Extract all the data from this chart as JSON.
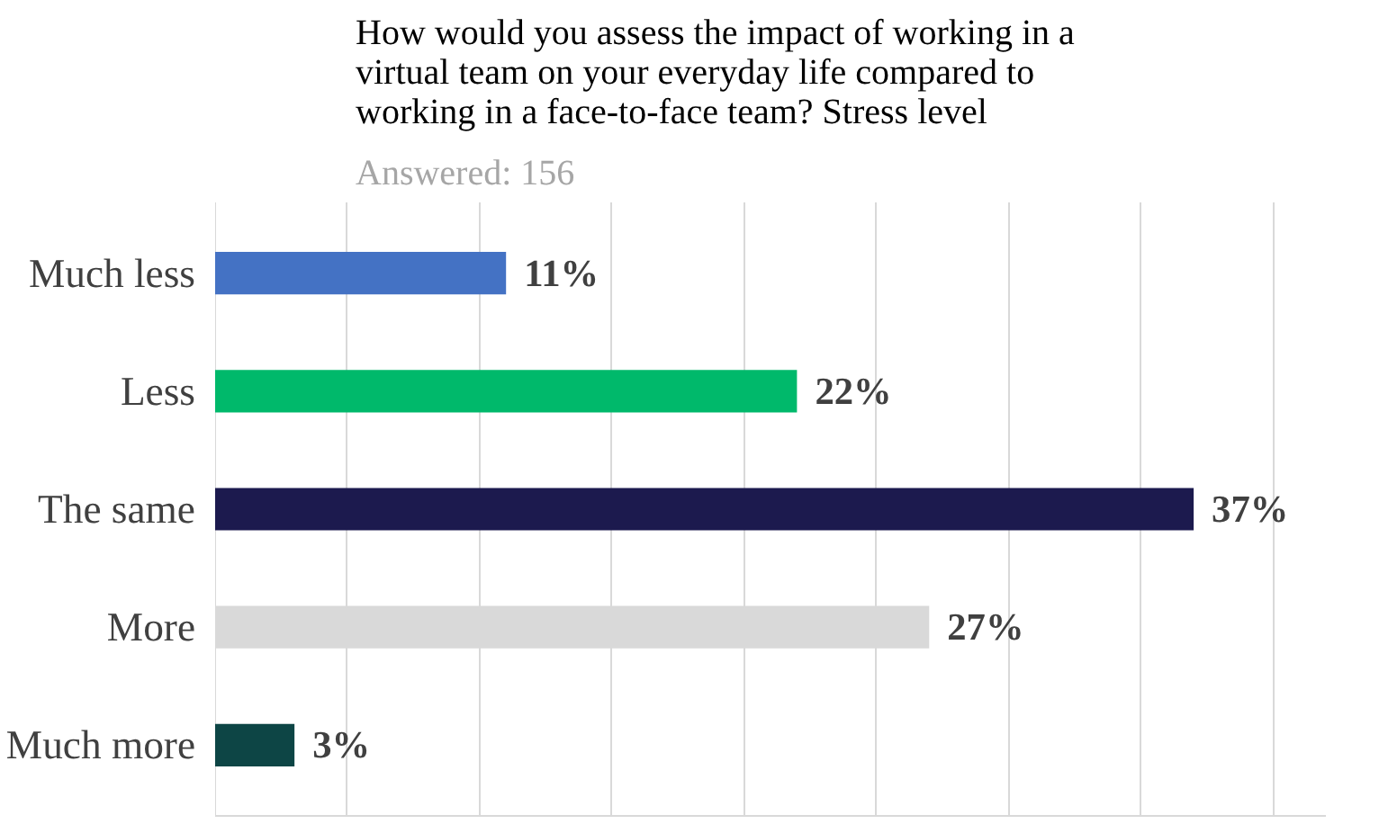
{
  "chart_data": {
    "type": "bar",
    "orientation": "horizontal",
    "title": "How would you assess the impact of working in a virtual team on your everyday life compared to working in a face-to-face team? Stress level",
    "subtitle": "Answered: 156",
    "categories": [
      "Much less",
      "Less",
      "The same",
      "More",
      "Much more"
    ],
    "values": [
      11,
      22,
      37,
      27,
      3
    ],
    "colors": [
      "#4472c4",
      "#00b96b",
      "#1c1a4e",
      "#d9d9d9",
      "#0d4545"
    ],
    "value_labels": [
      "11%",
      "22%",
      "37%",
      "27%",
      "3%"
    ],
    "xlim": [
      0,
      42
    ],
    "xticks": [
      {
        "value": 0,
        "label": null
      },
      {
        "value": 5,
        "label": null
      },
      {
        "value": 10,
        "label": null
      },
      {
        "value": 15,
        "label": null
      },
      {
        "value": 20,
        "label": null
      },
      {
        "value": 25,
        "label": null
      },
      {
        "value": 30,
        "label": null
      },
      {
        "value": 35,
        "label": null
      },
      {
        "value": 40,
        "label": null
      }
    ],
    "grid": "x",
    "tick_labels": "y"
  }
}
